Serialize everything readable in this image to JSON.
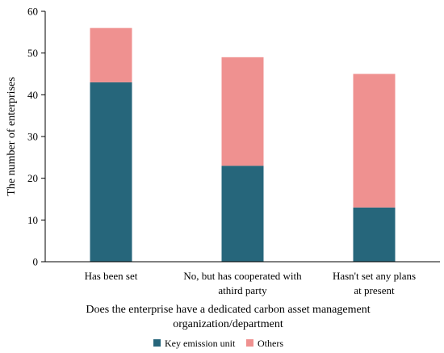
{
  "chart_data": {
    "type": "bar",
    "stacked": true,
    "categories": [
      [
        "Has been set"
      ],
      [
        "No, but has cooperated with",
        "athird party"
      ],
      [
        "Hasn't set any plans",
        "at present"
      ]
    ],
    "series": [
      {
        "name": "Key emission unit",
        "values": [
          43,
          23,
          13
        ],
        "color": "#26667b"
      },
      {
        "name": "Others",
        "values": [
          13,
          26,
          32
        ],
        "color": "#ef9190"
      }
    ],
    "xlabel": [
      "Does the enterprise have a dedicated carbon asset management",
      "organization/department"
    ],
    "ylabel": "The number of enterprises",
    "ylim": [
      0,
      60
    ],
    "yticks": [
      0,
      10,
      20,
      30,
      40,
      50,
      60
    ],
    "grid": false,
    "legend": "bottom"
  }
}
